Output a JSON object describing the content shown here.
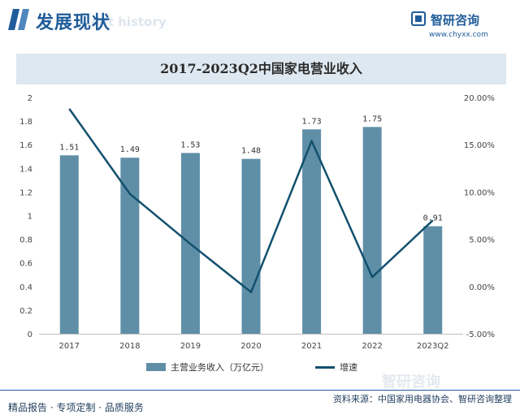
{
  "header": {
    "section_title": "发展现状",
    "section_subtitle": "ent history",
    "logo_name": "智研咨询",
    "logo_url": "www.chyxx.com"
  },
  "watermark_text": "智研咨询",
  "footer": {
    "left": "精品报告 · 专项定制 · 品质服务",
    "right": "资料来源：中国家用电器协会、智研咨询整理"
  },
  "colors": {
    "bar": "#5f8fa7",
    "line": "#12506e",
    "title_band": "#dde8f1",
    "brand": "#1f5c99"
  },
  "chart_data": {
    "type": "bar",
    "title": "2017-2023Q2中国家电营业收入",
    "categories": [
      "2017",
      "2018",
      "2019",
      "2020",
      "2021",
      "2022",
      "2023Q2"
    ],
    "series": [
      {
        "name": "主营业务收入（万亿元）",
        "type": "bar",
        "axis": "left",
        "values": [
          1.51,
          1.49,
          1.53,
          1.48,
          1.73,
          1.75,
          0.91
        ],
        "value_labels": [
          "1.51",
          "1.49",
          "1.53",
          "1.48",
          "1.73",
          "1.75",
          "0.91"
        ]
      },
      {
        "name": "增速",
        "type": "line",
        "axis": "right",
        "values": [
          18.8,
          9.8,
          4.5,
          -0.6,
          15.4,
          1.0,
          7.0
        ]
      }
    ],
    "y_left": {
      "min": 0,
      "max": 2,
      "step": 0.2,
      "ticks": [
        "0",
        "0.2",
        "0.4",
        "0.6",
        "0.8",
        "1",
        "1.2",
        "1.4",
        "1.6",
        "1.8",
        "2"
      ]
    },
    "y_right": {
      "min": -5,
      "max": 20,
      "step": 5,
      "ticks": [
        "-5.00%",
        "0.00%",
        "5.00%",
        "10.00%",
        "15.00%",
        "20.00%"
      ]
    },
    "grid": false,
    "legend_position": "bottom"
  }
}
